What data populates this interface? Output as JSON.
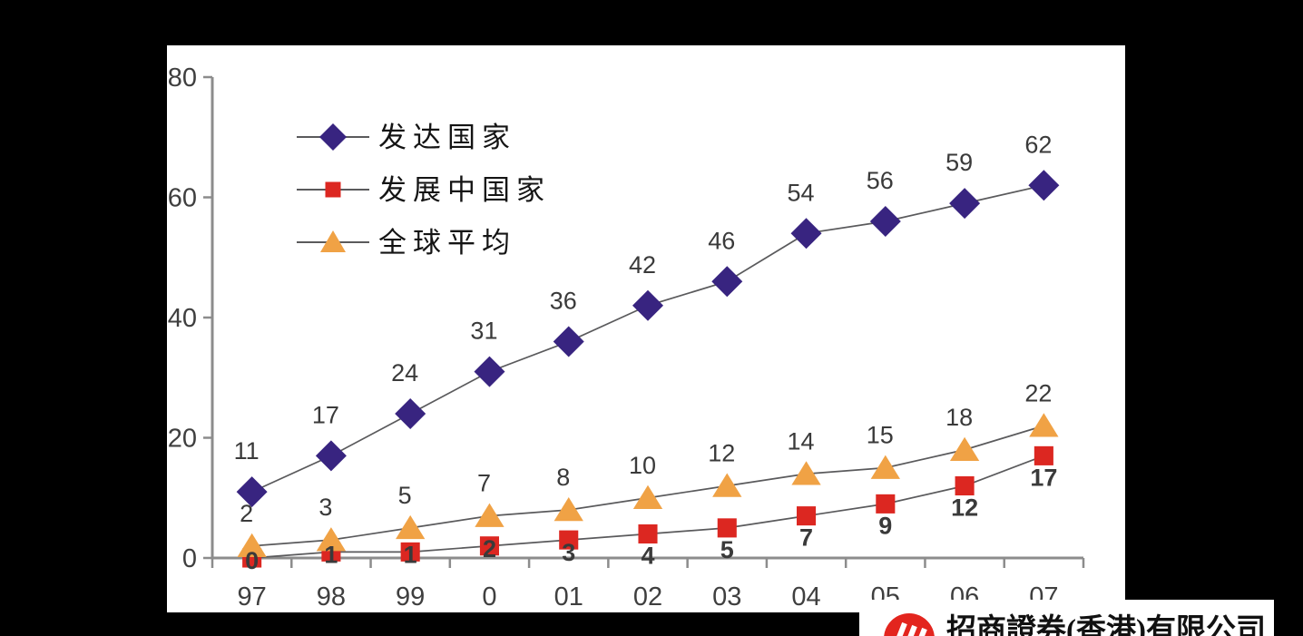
{
  "footer": {
    "company_name": "招商證券(香港)有限公司",
    "logo_color": "#E3251E"
  },
  "chart_data": {
    "type": "line",
    "categories": [
      "97",
      "98",
      "99",
      "0",
      "01",
      "02",
      "03",
      "04",
      "05",
      "06",
      "07"
    ],
    "series": [
      {
        "name": "发达国家",
        "marker": "diamond",
        "color": "#382480",
        "values": [
          11,
          17,
          24,
          31,
          36,
          42,
          46,
          54,
          56,
          59,
          62
        ],
        "bold_labels": false
      },
      {
        "name": "发展中国家",
        "marker": "square",
        "color": "#DC2721",
        "values": [
          0,
          1,
          1,
          2,
          3,
          4,
          5,
          7,
          9,
          12,
          17
        ],
        "bold_labels": true
      },
      {
        "name": "全球平均",
        "marker": "triangle",
        "color": "#F0A245",
        "values": [
          2,
          3,
          5,
          7,
          8,
          10,
          12,
          14,
          15,
          18,
          22
        ],
        "bold_labels": false
      }
    ],
    "ylim": [
      0,
      80
    ],
    "yticks": [
      0,
      20,
      40,
      60,
      80
    ],
    "grid": false,
    "legend_position": "top-left-inside",
    "colors": {
      "axis": "#8C8C8C",
      "series_line": "#5A5A5C",
      "data_label": "#3A3A3A",
      "tick_label": "#3F3F3F",
      "legend_text": "#141414"
    }
  }
}
